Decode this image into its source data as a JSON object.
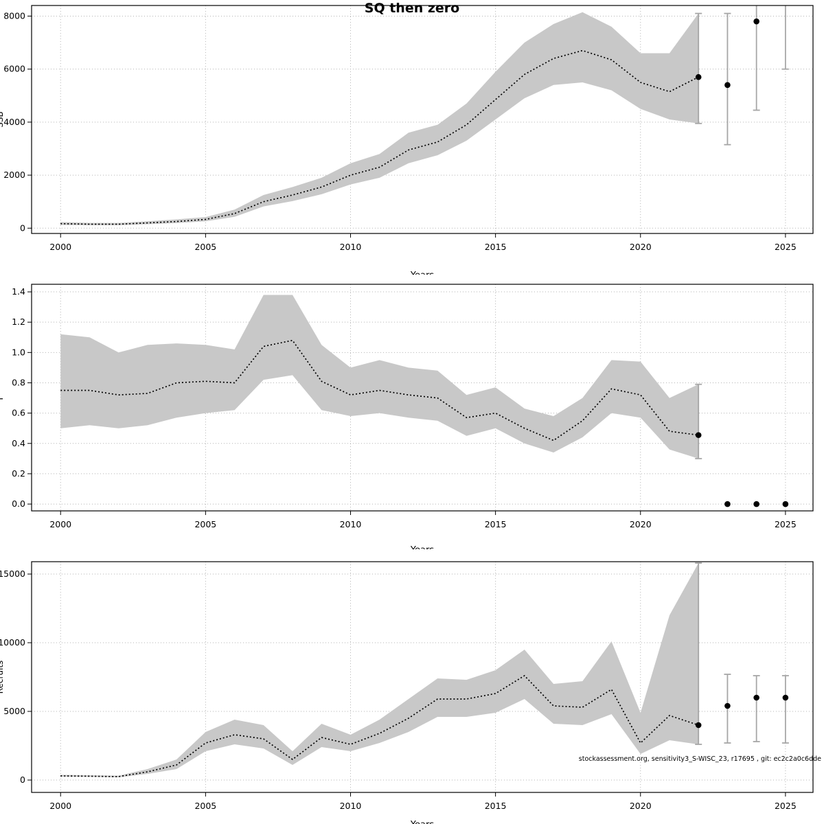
{
  "figure": {
    "title": "SQ then zero",
    "annotation": "stockassessment.org, sensitivity3_S-WISC_23, r17695 , git: ec2c2a0c6dde"
  },
  "colors": {
    "band": "#c8c8c8",
    "line": "#000000",
    "grid": "#b3b3b3",
    "errorbar": "#a6a6a6",
    "point": "#000000",
    "box": "#000000"
  },
  "chart_data": [
    {
      "type": "line",
      "name": "ssb",
      "ylabel": "SSB",
      "xlabel": "Years",
      "xlim": [
        1999.0,
        2025.95
      ],
      "ylim": [
        -200,
        8400
      ],
      "xticks": [
        2000,
        2005,
        2010,
        2015,
        2020,
        2025
      ],
      "xtick_labels": [
        "2000",
        "2005",
        "2010",
        "2015",
        "2020",
        "2025"
      ],
      "yticks": [
        0,
        2000,
        4000,
        6000,
        8000
      ],
      "ytick_labels": [
        "0",
        "2000",
        "4000",
        "6000",
        "8000"
      ],
      "grid": true,
      "legend": "none",
      "years": [
        2000,
        2001,
        2002,
        2003,
        2004,
        2005,
        2006,
        2007,
        2008,
        2009,
        2010,
        2011,
        2012,
        2013,
        2014,
        2015,
        2016,
        2017,
        2018,
        2019,
        2020,
        2021,
        2022
      ],
      "est": [
        170,
        150,
        150,
        200,
        250,
        330,
        550,
        1000,
        1250,
        1550,
        2000,
        2300,
        2950,
        3250,
        3900,
        4850,
        5800,
        6400,
        6700,
        6350,
        5500,
        5150,
        5700
      ],
      "lo": [
        120,
        110,
        110,
        150,
        190,
        260,
        430,
        820,
        1020,
        1280,
        1650,
        1900,
        2450,
        2750,
        3300,
        4100,
        4900,
        5400,
        5500,
        5200,
        4500,
        4100,
        3950
      ],
      "hi": [
        230,
        200,
        200,
        260,
        330,
        420,
        700,
        1250,
        1550,
        1900,
        2450,
        2800,
        3600,
        3900,
        4700,
        5900,
        7000,
        7700,
        8150,
        7600,
        6600,
        6600,
        8100
      ],
      "final_point": {
        "year": 2022,
        "value": 5700
      },
      "final_interval": {
        "year": 2022,
        "lo": 3950,
        "hi": 8100
      },
      "forecast": [
        {
          "year": 2023,
          "est": 5400,
          "lo": 3150,
          "hi": 8100
        },
        {
          "year": 2024,
          "est": 7800,
          "lo": 4450,
          "hi": 9500
        },
        {
          "year": 2025,
          "est": null,
          "lo": 6000,
          "hi": 9500
        }
      ]
    },
    {
      "type": "line",
      "name": "fbar",
      "ylabel": "F",
      "xlabel": "Years",
      "xlim": [
        1999.0,
        2025.95
      ],
      "ylim": [
        -0.045,
        1.45
      ],
      "xticks": [
        2000,
        2005,
        2010,
        2015,
        2020,
        2025
      ],
      "xtick_labels": [
        "2000",
        "2005",
        "2010",
        "2015",
        "2020",
        "2025"
      ],
      "yticks": [
        0.0,
        0.2,
        0.4,
        0.6,
        0.8,
        1.0,
        1.2,
        1.4
      ],
      "ytick_labels": [
        "0.0",
        "0.2",
        "0.4",
        "0.6",
        "0.8",
        "1.0",
        "1.2",
        "1.4"
      ],
      "grid": true,
      "legend": "none",
      "years": [
        2000,
        2001,
        2002,
        2003,
        2004,
        2005,
        2006,
        2007,
        2008,
        2009,
        2010,
        2011,
        2012,
        2013,
        2014,
        2015,
        2016,
        2017,
        2018,
        2019,
        2020,
        2021,
        2022
      ],
      "est": [
        0.75,
        0.75,
        0.72,
        0.73,
        0.8,
        0.81,
        0.8,
        1.04,
        1.08,
        0.81,
        0.72,
        0.75,
        0.72,
        0.7,
        0.57,
        0.6,
        0.5,
        0.42,
        0.55,
        0.76,
        0.72,
        0.48,
        0.455
      ],
      "lo": [
        0.5,
        0.52,
        0.5,
        0.52,
        0.57,
        0.6,
        0.62,
        0.82,
        0.85,
        0.62,
        0.58,
        0.6,
        0.57,
        0.55,
        0.45,
        0.5,
        0.4,
        0.34,
        0.44,
        0.6,
        0.57,
        0.36,
        0.3
      ],
      "hi": [
        1.12,
        1.1,
        1.0,
        1.05,
        1.06,
        1.05,
        1.02,
        1.38,
        1.38,
        1.05,
        0.9,
        0.95,
        0.9,
        0.88,
        0.72,
        0.77,
        0.63,
        0.58,
        0.7,
        0.95,
        0.94,
        0.7,
        0.79
      ],
      "final_point": {
        "year": 2022,
        "value": 0.455
      },
      "final_interval": {
        "year": 2022,
        "lo": 0.3,
        "hi": 0.79
      },
      "forecast": [
        {
          "year": 2023,
          "est": 0.0,
          "lo": null,
          "hi": null
        },
        {
          "year": 2024,
          "est": 0.0,
          "lo": null,
          "hi": null
        },
        {
          "year": 2025,
          "est": 0.0,
          "lo": null,
          "hi": null
        }
      ]
    },
    {
      "type": "line",
      "name": "recruitment",
      "ylabel": "Recruits",
      "xlabel": "Years",
      "xlim": [
        1999.0,
        2025.95
      ],
      "ylim": [
        -900,
        15900
      ],
      "xticks": [
        2000,
        2005,
        2010,
        2015,
        2020,
        2025
      ],
      "xtick_labels": [
        "2000",
        "2005",
        "2010",
        "2015",
        "2020",
        "2025"
      ],
      "yticks": [
        0,
        5000,
        10000,
        15000
      ],
      "ytick_labels": [
        "0",
        "5000",
        "10000",
        "15000"
      ],
      "grid": true,
      "legend": "none",
      "years": [
        2000,
        2001,
        2002,
        2003,
        2004,
        2005,
        2006,
        2007,
        2008,
        2009,
        2010,
        2011,
        2012,
        2013,
        2014,
        2015,
        2016,
        2017,
        2018,
        2019,
        2020,
        2021,
        2022
      ],
      "est": [
        300,
        280,
        250,
        600,
        1100,
        2700,
        3300,
        3000,
        1500,
        3100,
        2600,
        3400,
        4500,
        5900,
        5900,
        6300,
        7600,
        5400,
        5300,
        6600,
        2700,
        4700,
        4000
      ],
      "lo": [
        250,
        230,
        200,
        450,
        800,
        2100,
        2600,
        2300,
        1100,
        2400,
        2100,
        2700,
        3500,
        4600,
        4600,
        4900,
        5900,
        4100,
        4000,
        4800,
        1900,
        2900,
        2600
      ],
      "hi": [
        380,
        350,
        320,
        800,
        1500,
        3500,
        4400,
        4000,
        2100,
        4100,
        3300,
        4400,
        5900,
        7400,
        7300,
        8000,
        9500,
        7000,
        7200,
        10100,
        4900,
        12000,
        15800
      ],
      "final_point": {
        "year": 2022,
        "value": 4000
      },
      "final_interval": {
        "year": 2022,
        "lo": 2600,
        "hi": 15800
      },
      "forecast": [
        {
          "year": 2023,
          "est": 5400,
          "lo": 2700,
          "hi": 7700
        },
        {
          "year": 2024,
          "est": 6000,
          "lo": 2800,
          "hi": 7600
        },
        {
          "year": 2025,
          "est": 6000,
          "lo": 2700,
          "hi": 7600
        }
      ]
    }
  ]
}
